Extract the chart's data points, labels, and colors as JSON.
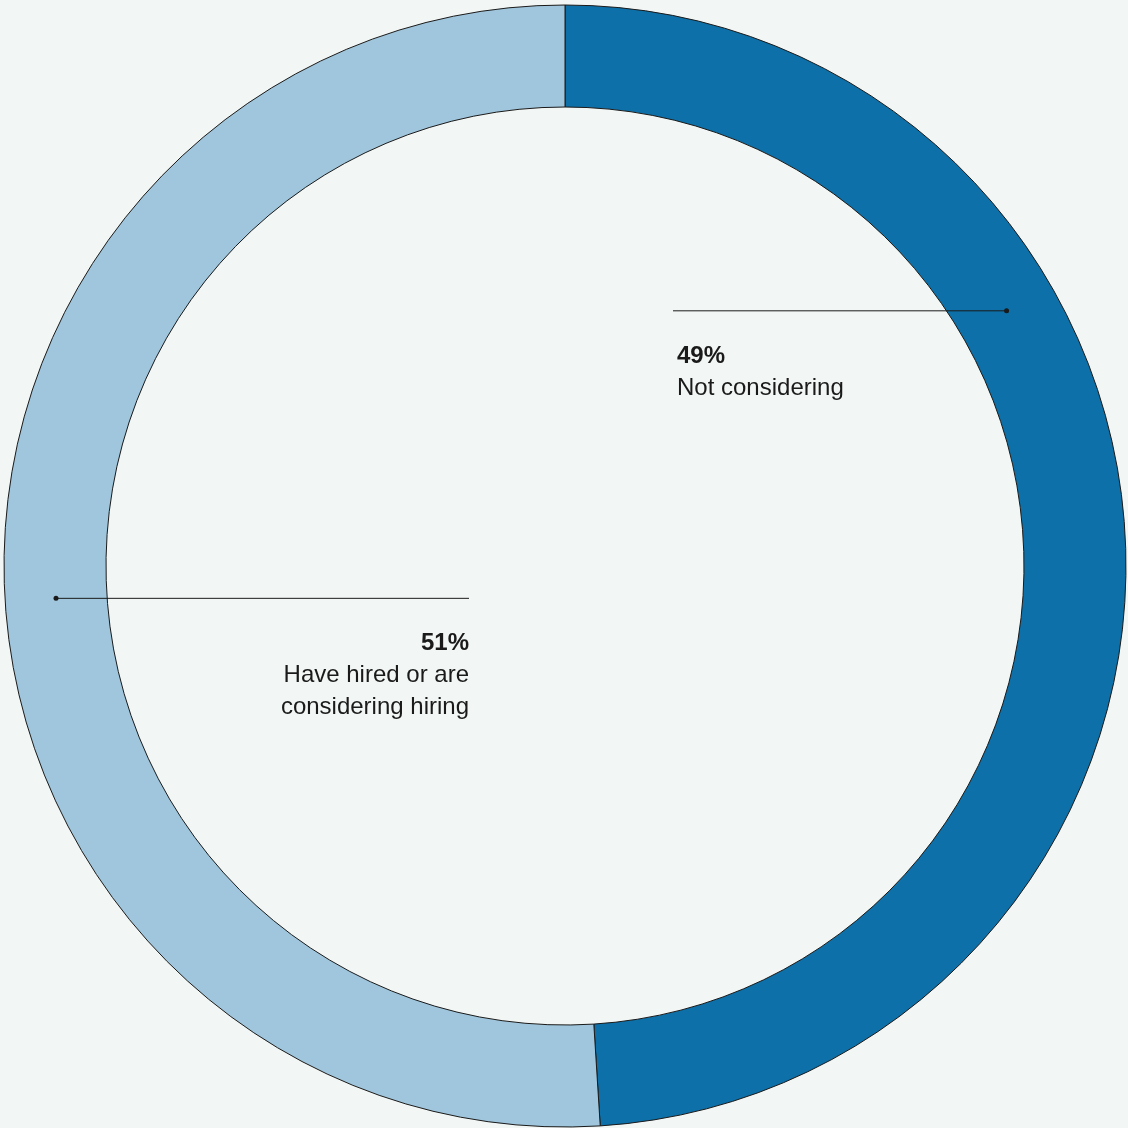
{
  "chart_data": {
    "type": "donut",
    "categories": [
      "Not considering",
      "Have hired or are considering hiring"
    ],
    "values": [
      49,
      51
    ],
    "value_labels": [
      "49%",
      "51%"
    ],
    "colors": [
      "#0d70a8",
      "#9fc6dc"
    ]
  }
}
